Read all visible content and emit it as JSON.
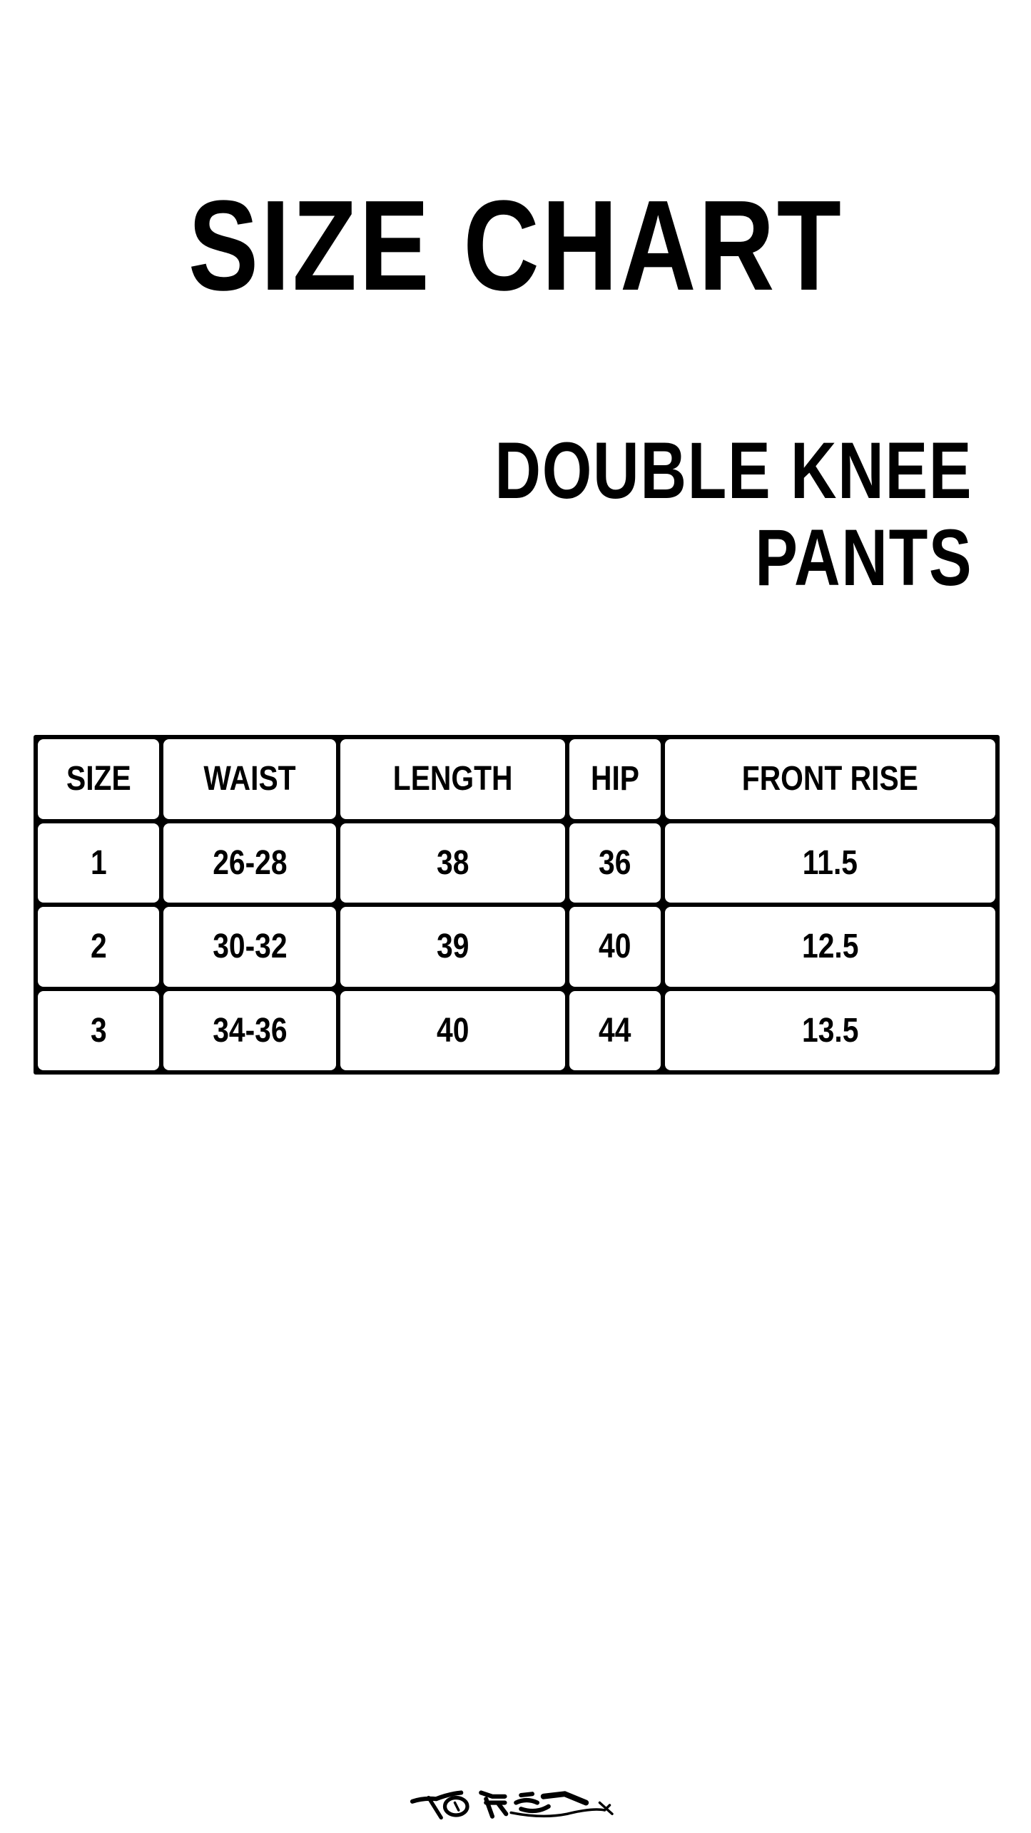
{
  "title": "SIZE CHART",
  "subtitle": {
    "line1": "DOUBLE KNEE",
    "line2": "PANTS"
  },
  "table": {
    "headers": [
      "SIZE",
      "WAIST",
      "LENGTH",
      "HIP",
      "FRONT RISE"
    ],
    "rows": [
      [
        "1",
        "26-28",
        "38",
        "36",
        "11.5"
      ],
      [
        "2",
        "30-32",
        "39",
        "40",
        "12.5"
      ],
      [
        "3",
        "34-36",
        "40",
        "44",
        "13.5"
      ]
    ]
  },
  "signature": "Toffee"
}
